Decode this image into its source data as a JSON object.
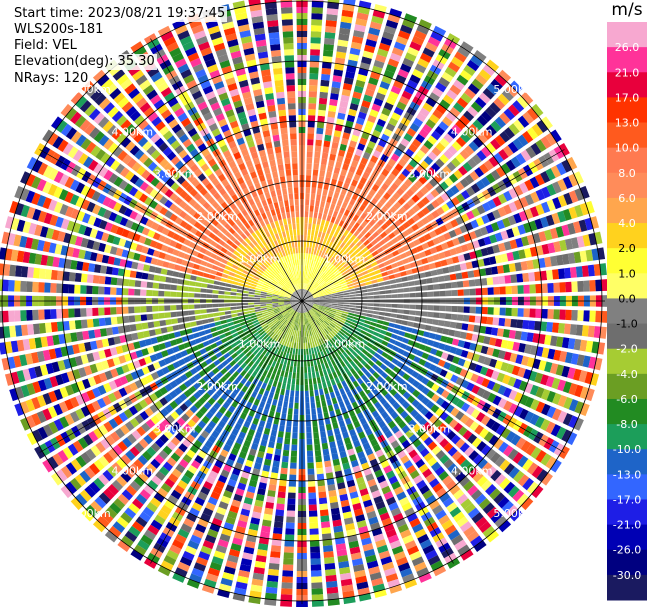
{
  "info": {
    "start_time": "Start time: 2023/08/21 19:37:45",
    "instrument": "WLS200s-181",
    "field": "Field: VEL",
    "elevation": "Elevation(deg): 35.30",
    "nrays": "NRays: 120"
  },
  "colorbar": {
    "unit": "m/s",
    "labels": [
      "26.0",
      "21.0",
      "17.0",
      "13.0",
      "10.0",
      "8.0",
      "6.0",
      "4.0",
      "2.0",
      "1.0",
      "0.0",
      "-1.0",
      "-2.0",
      "-4.0",
      "-6.0",
      "-8.0",
      "-10.0",
      "-13.0",
      "-17.0",
      "-21.0",
      "-26.0",
      "-30.0"
    ],
    "colors": [
      "#f7a8d0",
      "#ff3399",
      "#e8003c",
      "#ff3300",
      "#ff5a1e",
      "#ff7a50",
      "#ff8c5a",
      "#ffa64d",
      "#ffd21e",
      "#ffff33",
      "#ffff66",
      "#808080",
      "#6e6e6e",
      "#a6cc33",
      "#6b9e23",
      "#228b22",
      "#1c9e5a",
      "#1e64c8",
      "#3366ff",
      "#1e1ee6",
      "#0000b4",
      "#000080",
      "#1a1a60"
    ]
  },
  "chart_data": {
    "type": "heatmap",
    "projection": "polar (PPI scan)",
    "field": "VEL",
    "units": "m/s",
    "n_rays": 120,
    "elevation_deg": 35.3,
    "range_rings_km": [
      1.0,
      2.0,
      3.0,
      4.0,
      5.0
    ],
    "range_ring_labels": [
      "1.00km",
      "2.00km",
      "3.00km",
      "4.00km",
      "5.00km"
    ],
    "value_range": [
      -30.0,
      26.0
    ],
    "approximate_pattern": {
      "north_sector_inner_km_0_to_2": "1.0 to 6.0 m/s (yellow/orange)",
      "south_sector_inner_km_0_to_2": "-2.0 to -10.0 m/s (green/blue)",
      "east_west_near_center": "0.0 to -1.0 m/s (grey)",
      "beyond_2.5km": "noise spanning full range"
    }
  }
}
